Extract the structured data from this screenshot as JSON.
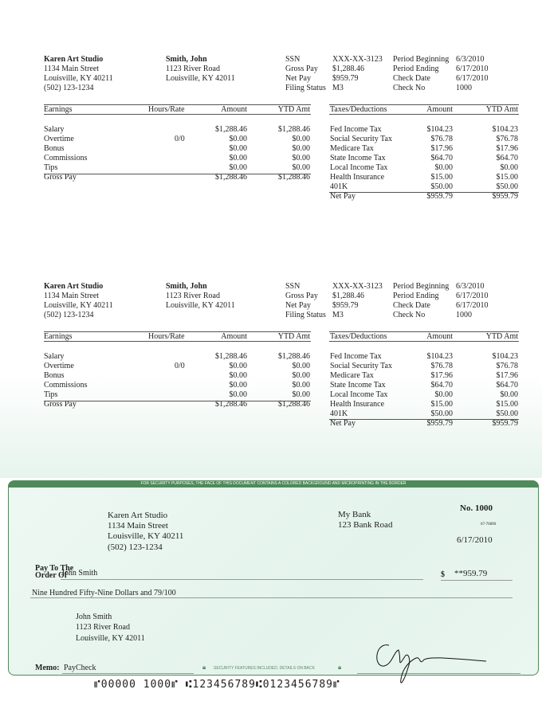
{
  "stub": {
    "employer": {
      "name": "Karen Art Studio",
      "street": "1134 Main Street",
      "city": "Louisville, KY 40211",
      "phone": "(502) 123-1234"
    },
    "employee": {
      "name": "Smith, John",
      "street": "1123 River Road",
      "city": "Louisville, KY 42011"
    },
    "summary": [
      {
        "label": "SSN",
        "value": "XXX-XX-3123"
      },
      {
        "label": "Gross Pay",
        "value": "$1,288.46"
      },
      {
        "label": "Net Pay",
        "value": "$959.79"
      },
      {
        "label": "Filing Status",
        "value": "M3"
      }
    ],
    "period": [
      {
        "label": "Period Beginning",
        "value": "6/3/2010"
      },
      {
        "label": "Period Ending",
        "value": "6/17/2010"
      },
      {
        "label": "Check Date",
        "value": "6/17/2010"
      },
      {
        "label": "Check No",
        "value": "1000"
      }
    ],
    "earnings_headers": [
      "Earnings",
      "Hours/Rate",
      "Amount",
      "YTD Amt"
    ],
    "earnings": [
      [
        "Salary",
        "",
        "$1,288.46",
        "$1,288.46"
      ],
      [
        "Overtime",
        "0/0",
        "$0.00",
        "$0.00"
      ],
      [
        "Bonus",
        "",
        "$0.00",
        "$0.00"
      ],
      [
        "Commissions",
        "",
        "$0.00",
        "$0.00"
      ],
      [
        "Tips",
        "",
        "$0.00",
        "$0.00"
      ],
      [
        "Gross Pay",
        "",
        "$1,288.46",
        "$1,288.46"
      ]
    ],
    "deductions_headers": [
      "Taxes/Deductions",
      "Amount",
      "YTD Amt"
    ],
    "deductions": [
      [
        "Fed Income Tax",
        "$104.23",
        "$104.23"
      ],
      [
        "Social Security Tax",
        "$76.78",
        "$76.78"
      ],
      [
        "Medicare Tax",
        "$17.96",
        "$17.96"
      ],
      [
        "State Income Tax",
        "$64.70",
        "$64.70"
      ],
      [
        "Local Income Tax",
        "$0.00",
        "$0.00"
      ],
      [
        "Health Insurance",
        "$15.00",
        "$15.00"
      ],
      [
        "401K",
        "$50.00",
        "$50.00"
      ],
      [
        "Net Pay",
        "$959.79",
        "$959.79"
      ]
    ]
  },
  "check": {
    "security_banner": "FOR SECURITY PURPOSES, THE FACE OF THIS DOCUMENT CONTAINS A COLORED BACKGROUND AND MICROPRINTING IN THE BORDER",
    "payer": {
      "name": "Karen Art Studio",
      "street": "1134 Main Street",
      "city": "Louisville, KY 40211",
      "phone": "(502) 123-1234"
    },
    "bank": {
      "name": "My Bank",
      "street": "123 Bank Road"
    },
    "number": "No. 1000",
    "routing_fraction": "67-76890",
    "date": "6/17/2010",
    "pay_to_label_1": "Pay To The",
    "pay_to_label_2": "Order Of",
    "payee": "John Smith",
    "dollar_sign": "$",
    "amount": "**959.79",
    "amount_words": "Nine Hundred Fifty-Nine Dollars and 79/100",
    "payee_address": {
      "name": "John Smith",
      "street": "1123 River Road",
      "city": "Louisville, KY 42011"
    },
    "memo_label": "Memo:",
    "memo": "PayCheck",
    "security_footer": "SECURITY FEATURES INCLUDED. DETAILS ON BACK",
    "micr": "⑈00000 1000⑈ ⑆123456789⑆0123456789⑈",
    "accent_color": "#4f8a5a"
  }
}
